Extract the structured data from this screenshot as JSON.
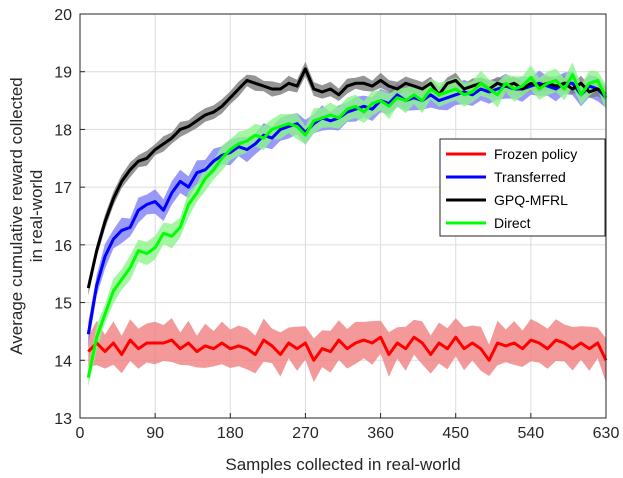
{
  "chart_data": {
    "type": "line",
    "xlabel": "Samples collected in real-world",
    "ylabel_lines": [
      "Average cumulative reward collected",
      "in real-world"
    ],
    "xlim": [
      0,
      630
    ],
    "ylim": [
      13,
      20
    ],
    "xticks": [
      0,
      90,
      180,
      270,
      360,
      450,
      540,
      630
    ],
    "yticks": [
      13,
      14,
      15,
      16,
      17,
      18,
      19,
      20
    ],
    "grid": true,
    "legend_position": "right",
    "series": [
      {
        "name": "Frozen policy",
        "color": "#ff0000",
        "band_color": "#f08080",
        "x": [
          10,
          20,
          30,
          40,
          50,
          60,
          70,
          80,
          90,
          100,
          110,
          120,
          130,
          140,
          150,
          160,
          170,
          180,
          190,
          200,
          210,
          220,
          230,
          240,
          250,
          260,
          270,
          280,
          290,
          300,
          310,
          320,
          330,
          340,
          350,
          360,
          370,
          380,
          390,
          400,
          410,
          420,
          430,
          440,
          450,
          460,
          470,
          480,
          490,
          500,
          510,
          520,
          530,
          540,
          550,
          560,
          570,
          580,
          590,
          600,
          610,
          620,
          630
        ],
        "y": [
          14.15,
          14.3,
          14.15,
          14.3,
          14.1,
          14.35,
          14.2,
          14.3,
          14.3,
          14.3,
          14.35,
          14.2,
          14.3,
          14.15,
          14.25,
          14.2,
          14.3,
          14.2,
          14.25,
          14.2,
          14.1,
          14.35,
          14.25,
          14.1,
          14.3,
          14.2,
          14.3,
          14.0,
          14.2,
          14.15,
          14.35,
          14.2,
          14.3,
          14.35,
          14.3,
          14.4,
          14.1,
          14.3,
          14.2,
          14.4,
          14.3,
          14.1,
          14.3,
          14.2,
          14.4,
          14.2,
          14.3,
          14.2,
          14.0,
          14.3,
          14.25,
          14.3,
          14.2,
          14.35,
          14.3,
          14.2,
          14.35,
          14.3,
          14.2,
          14.3,
          14.2,
          14.3,
          14.0
        ],
        "spread": 0.35
      },
      {
        "name": "Transferred",
        "color": "#0000ff",
        "band_color": "#8080f8",
        "x": [
          10,
          20,
          30,
          40,
          50,
          60,
          70,
          80,
          90,
          100,
          110,
          120,
          130,
          140,
          150,
          160,
          170,
          180,
          190,
          200,
          210,
          220,
          230,
          240,
          250,
          260,
          270,
          280,
          290,
          300,
          310,
          320,
          330,
          340,
          350,
          360,
          370,
          380,
          390,
          400,
          410,
          420,
          430,
          440,
          450,
          460,
          470,
          480,
          490,
          500,
          510,
          520,
          530,
          540,
          550,
          560,
          570,
          580,
          590,
          600,
          610,
          620,
          630
        ],
        "y": [
          14.45,
          15.3,
          15.8,
          16.1,
          16.25,
          16.3,
          16.6,
          16.7,
          16.75,
          16.6,
          16.9,
          17.1,
          17.0,
          17.25,
          17.3,
          17.45,
          17.55,
          17.6,
          17.7,
          17.65,
          17.75,
          17.9,
          17.85,
          18.0,
          18.05,
          18.1,
          17.95,
          18.1,
          18.2,
          18.15,
          18.2,
          18.3,
          18.35,
          18.4,
          18.35,
          18.5,
          18.45,
          18.6,
          18.5,
          18.55,
          18.5,
          18.6,
          18.5,
          18.55,
          18.6,
          18.65,
          18.6,
          18.7,
          18.65,
          18.7,
          18.75,
          18.7,
          18.7,
          18.75,
          18.8,
          18.75,
          18.7,
          18.8,
          18.8,
          18.6,
          18.75,
          18.7,
          18.55
        ],
        "spread": 0.2
      },
      {
        "name": "GPQ-MFRL",
        "color": "#000000",
        "band_color": "#7a7a7a",
        "x": [
          10,
          20,
          30,
          40,
          50,
          60,
          70,
          80,
          90,
          100,
          110,
          120,
          130,
          140,
          150,
          160,
          170,
          180,
          190,
          200,
          210,
          220,
          230,
          240,
          250,
          260,
          270,
          280,
          290,
          300,
          310,
          320,
          330,
          340,
          350,
          360,
          370,
          380,
          390,
          400,
          410,
          420,
          430,
          440,
          450,
          460,
          470,
          480,
          490,
          500,
          510,
          520,
          530,
          540,
          550,
          560,
          570,
          580,
          590,
          600,
          610,
          620,
          630
        ],
        "y": [
          15.25,
          15.9,
          16.4,
          16.8,
          17.1,
          17.3,
          17.45,
          17.5,
          17.65,
          17.75,
          17.85,
          18.0,
          18.05,
          18.15,
          18.25,
          18.3,
          18.4,
          18.55,
          18.7,
          18.85,
          18.8,
          18.75,
          18.7,
          18.7,
          18.8,
          18.75,
          19.05,
          18.7,
          18.65,
          18.7,
          18.6,
          18.75,
          18.8,
          18.8,
          18.75,
          18.85,
          18.75,
          18.7,
          18.8,
          18.75,
          18.7,
          18.8,
          18.6,
          18.8,
          18.85,
          18.7,
          18.75,
          18.8,
          18.7,
          18.8,
          18.75,
          18.8,
          18.7,
          18.8,
          18.75,
          18.8,
          18.75,
          18.8,
          18.7,
          18.8,
          18.65,
          18.7,
          18.6
        ],
        "spread": 0.12
      },
      {
        "name": "Direct",
        "color": "#00ff00",
        "band_color": "#8cf58c",
        "x": [
          10,
          20,
          30,
          40,
          50,
          60,
          70,
          80,
          90,
          100,
          110,
          120,
          130,
          140,
          150,
          160,
          170,
          180,
          190,
          200,
          210,
          220,
          230,
          240,
          250,
          260,
          270,
          280,
          290,
          300,
          310,
          320,
          330,
          340,
          350,
          360,
          370,
          380,
          390,
          400,
          410,
          420,
          430,
          440,
          450,
          460,
          470,
          480,
          490,
          500,
          510,
          520,
          530,
          540,
          550,
          560,
          570,
          580,
          590,
          600,
          610,
          620,
          630
        ],
        "y": [
          13.7,
          14.4,
          14.8,
          15.2,
          15.4,
          15.6,
          15.9,
          15.85,
          15.95,
          16.2,
          16.15,
          16.3,
          16.7,
          16.9,
          17.15,
          17.3,
          17.5,
          17.65,
          17.75,
          17.8,
          17.9,
          17.85,
          18.0,
          18.05,
          18.1,
          18.05,
          17.9,
          18.15,
          18.2,
          18.25,
          18.2,
          18.35,
          18.4,
          18.3,
          18.45,
          18.5,
          18.4,
          18.55,
          18.5,
          18.6,
          18.5,
          18.7,
          18.6,
          18.65,
          18.7,
          18.6,
          18.65,
          18.8,
          18.7,
          18.6,
          18.8,
          18.7,
          18.75,
          18.9,
          18.7,
          18.8,
          18.85,
          18.7,
          18.95,
          18.6,
          18.8,
          18.85,
          18.55
        ],
        "spread": 0.2
      }
    ]
  }
}
